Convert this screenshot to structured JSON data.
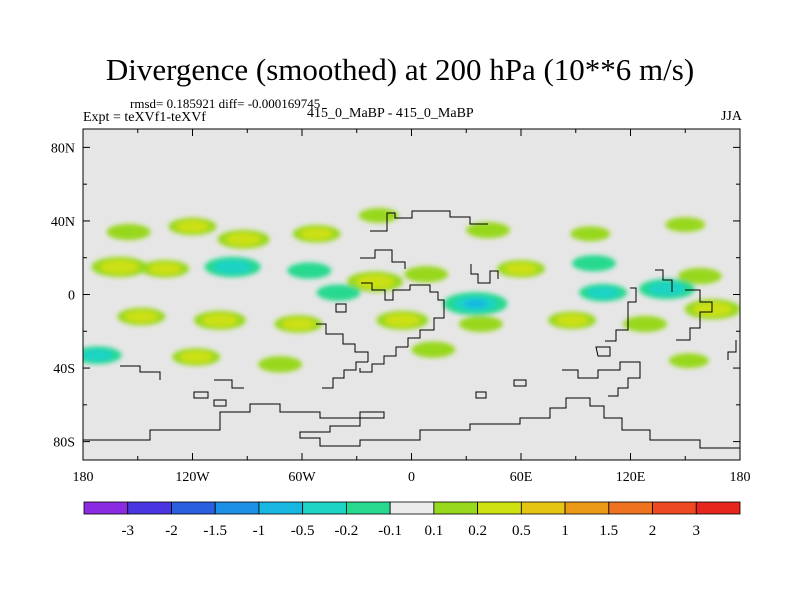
{
  "header": {
    "title": "Divergence (smoothed) at 200 hPa (10**6 m/s)",
    "stats": "rmsd= 0.185921 diff= -0.000169745",
    "experiment": "Expt = teXVf1-teXVf",
    "case": "415_0_MaBP - 415_0_MaBP",
    "season": "JJA"
  },
  "chart_data": {
    "type": "heatmap",
    "title": "Divergence (smoothed) at 200 hPa (10**6 m/s)",
    "field": "divergence difference (smoothed)",
    "units": "10**6 m/s",
    "level": "200 hPa",
    "season": "JJA",
    "xlabel": "",
    "ylabel": "",
    "x_range": [
      -180,
      180
    ],
    "y_range": [
      -90,
      90
    ],
    "x_ticks": [
      {
        "value": -180,
        "label": "180"
      },
      {
        "value": -120,
        "label": "120W"
      },
      {
        "value": -60,
        "label": "60W"
      },
      {
        "value": 0,
        "label": "0"
      },
      {
        "value": 60,
        "label": "60E"
      },
      {
        "value": 120,
        "label": "120E"
      },
      {
        "value": 180,
        "label": "180"
      }
    ],
    "y_ticks": [
      {
        "value": 80,
        "label": "80N"
      },
      {
        "value": 40,
        "label": "40N"
      },
      {
        "value": 0,
        "label": "0"
      },
      {
        "value": -40,
        "label": "40S"
      },
      {
        "value": -80,
        "label": "80S"
      }
    ],
    "colorbar": {
      "levels": [
        "-3",
        "-2",
        "-1.5",
        "-1",
        "-0.5",
        "-0.2",
        "-0.1",
        "0.1",
        "0.2",
        "0.5",
        "1",
        "1.5",
        "2",
        "3"
      ],
      "colors": [
        "#8a2be2",
        "#4a36e0",
        "#2a5fe0",
        "#1c8fe6",
        "#17b7e2",
        "#1dd3c4",
        "#26d98e",
        "#ececec",
        "#98d81c",
        "#cce012",
        "#e6c412",
        "#eb9a18",
        "#ee7220",
        "#ee4a22",
        "#e6261d"
      ]
    },
    "features": [
      {
        "lon": -155,
        "lat": 34,
        "value": 0.3
      },
      {
        "lon": -120,
        "lat": 37,
        "value": 0.4
      },
      {
        "lon": -92,
        "lat": 30,
        "value": 0.5
      },
      {
        "lon": -52,
        "lat": 33,
        "value": 0.4
      },
      {
        "lon": -18,
        "lat": 43,
        "value": 0.2
      },
      {
        "lon": 42,
        "lat": 35,
        "value": 0.3
      },
      {
        "lon": 98,
        "lat": 33,
        "value": 0.2
      },
      {
        "lon": 150,
        "lat": 38,
        "value": 0.2
      },
      {
        "lon": -160,
        "lat": 15,
        "value": 0.6
      },
      {
        "lon": -135,
        "lat": 14,
        "value": 0.4
      },
      {
        "lon": -98,
        "lat": 15,
        "value": -0.6
      },
      {
        "lon": -56,
        "lat": 13,
        "value": -0.3
      },
      {
        "lon": -20,
        "lat": 7,
        "value": 0.6
      },
      {
        "lon": 8,
        "lat": 11,
        "value": 0.3
      },
      {
        "lon": 60,
        "lat": 14,
        "value": 0.4
      },
      {
        "lon": 100,
        "lat": 17,
        "value": -0.3
      },
      {
        "lon": 158,
        "lat": 10,
        "value": 0.3
      },
      {
        "lon": -40,
        "lat": 1,
        "value": -0.3
      },
      {
        "lon": 35,
        "lat": -5,
        "value": -0.8
      },
      {
        "lon": 105,
        "lat": 1,
        "value": -0.4
      },
      {
        "lon": 140,
        "lat": 3,
        "value": -0.6
      },
      {
        "lon": -148,
        "lat": -12,
        "value": 0.4
      },
      {
        "lon": -105,
        "lat": -14,
        "value": 0.5
      },
      {
        "lon": -62,
        "lat": -16,
        "value": 0.4
      },
      {
        "lon": -5,
        "lat": -14,
        "value": 0.5
      },
      {
        "lon": 38,
        "lat": -16,
        "value": 0.3
      },
      {
        "lon": 88,
        "lat": -14,
        "value": 0.4
      },
      {
        "lon": 128,
        "lat": -16,
        "value": 0.3
      },
      {
        "lon": 165,
        "lat": -8,
        "value": 0.6
      },
      {
        "lon": -172,
        "lat": -33,
        "value": -0.4
      },
      {
        "lon": -118,
        "lat": -34,
        "value": 0.4
      },
      {
        "lon": -72,
        "lat": -38,
        "value": 0.3
      },
      {
        "lon": 12,
        "lat": -30,
        "value": 0.3
      },
      {
        "lon": 152,
        "lat": -36,
        "value": 0.2
      }
    ]
  }
}
